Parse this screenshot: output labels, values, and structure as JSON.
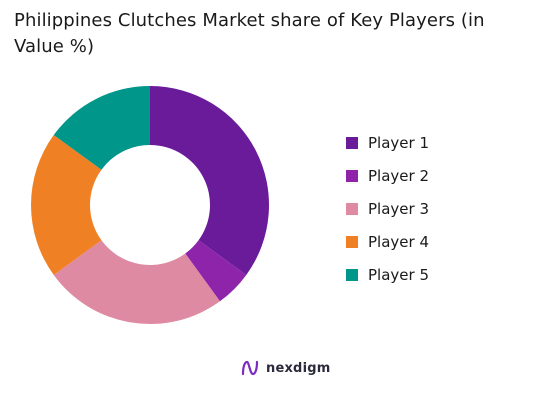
{
  "chart_data": {
    "type": "pie",
    "donut": true,
    "title": "Philippines Clutches Market share of Key Players (in Value %)",
    "categories": [
      "Player 1",
      "Player 2",
      "Player 3",
      "Player 4",
      "Player 5"
    ],
    "values": [
      35,
      5,
      25,
      20,
      15
    ],
    "colors": [
      "#6a1b9a",
      "#8e24aa",
      "#de8aa3",
      "#f08024",
      "#00968a"
    ],
    "legend_position": "right"
  },
  "brand": {
    "name": "nexdigm",
    "color": "#7b2cbf"
  }
}
